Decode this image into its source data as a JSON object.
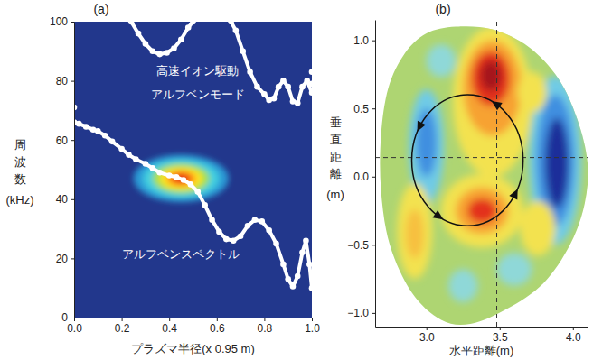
{
  "chart_data": [
    {
      "type": "line",
      "title": "(a)",
      "xlabel": "プラズマ半径(x 0.95 m)",
      "ylabel": [
        "周波数",
        "(kHz)"
      ],
      "color": "#22378c",
      "xlim": [
        0,
        1
      ],
      "xticks": [
        {
          "value": 0,
          "label": "0.0"
        },
        0.2,
        0.4,
        0.6,
        0.8,
        {
          "value": 1,
          "label": "1.0"
        }
      ],
      "ylim": [
        0,
        100
      ],
      "yticks": [
        0,
        20,
        40,
        60,
        80,
        100
      ],
      "series": [
        {
          "color": "#ffffff",
          "marker": "circle",
          "line_style": "solid",
          "x": [
            0.0,
            0.02,
            0.05,
            0.08,
            0.1,
            0.13,
            0.16,
            0.2,
            0.23,
            0.26,
            0.3,
            0.33,
            0.36,
            0.4,
            0.43,
            0.46,
            0.49,
            0.52,
            0.55,
            0.58,
            0.61,
            0.64,
            0.67,
            0.7,
            0.73,
            0.76,
            0.79,
            0.82,
            0.85,
            0.88,
            0.9,
            0.92,
            0.94,
            0.96,
            0.975,
            0.99,
            1.0
          ],
          "values": [
            66,
            65.5,
            64.5,
            63.5,
            63,
            61.5,
            59.5,
            57,
            55,
            53.5,
            52,
            50.5,
            49,
            48,
            47.5,
            46.5,
            45,
            42.5,
            38,
            33,
            29,
            26.5,
            26,
            27.5,
            31,
            33,
            32.5,
            29.5,
            25,
            18,
            13,
            10.5,
            14,
            22,
            26,
            18,
            10
          ]
        },
        {
          "color": "#ffffff",
          "marker": "circle",
          "line_style": "solid",
          "x": [
            0.24,
            0.27,
            0.3,
            0.33,
            0.36,
            0.39,
            0.42,
            0.45,
            0.48,
            0.5,
            0.58,
            0.66,
            0.68,
            0.71,
            0.74,
            0.77,
            0.8,
            0.82,
            0.84,
            0.86,
            0.88,
            0.9,
            0.92,
            0.94,
            0.96,
            0.98,
            1.0
          ],
          "values": [
            100,
            96,
            92.5,
            90,
            89,
            89.5,
            91,
            94,
            98,
            100,
            null,
            100,
            97,
            90,
            83,
            78,
            75.5,
            73.5,
            74,
            78,
            80,
            78,
            73,
            72.5,
            78,
            80,
            76
          ]
        },
        {
          "color": "#ffffff",
          "marker": "circle",
          "line_style": "none",
          "x": [
            0.0,
            1.0,
            1.0
          ],
          "values": [
            71,
            83,
            79
          ]
        }
      ],
      "mode": {
        "x": 0.45,
        "y": 47,
        "x_radius": [
          0.2,
          0.16,
          0.12,
          0.09,
          0.06,
          0.035
        ],
        "y_radius": [
          8,
          6.5,
          5,
          3.8,
          2.6,
          1.5
        ],
        "colors": [
          "#2a9ad6",
          "#43cfe0",
          "#a6e046",
          "#ffe324",
          "#ff8a12",
          "#e62414"
        ]
      },
      "annotations": [
        {
          "text": "高速イオン駆動",
          "x": 0.52,
          "y": 82
        },
        {
          "text": "アルフベンモード",
          "x": 0.52,
          "y": 74
        },
        {
          "text": "アルフベンスペクトル",
          "x": 0.45,
          "y": 20
        }
      ]
    },
    {
      "type": "contour",
      "title": "(b)",
      "xlabel": "水平距離(m)",
      "ylabel": [
        "垂直距離",
        "(m)"
      ],
      "xlim": [
        2.65,
        4.1
      ],
      "xticks": [
        {
          "value": 3,
          "label": "3.0"
        },
        3.5,
        {
          "value": 4,
          "label": "4.0"
        }
      ],
      "ylim": [
        -1.1,
        1.15
      ],
      "yticks": [
        {
          "value": -1,
          "label": "−1.0"
        },
        {
          "value": -0.5,
          "label": "−0.5"
        },
        {
          "value": 0,
          "label": "0.0"
        },
        0.5,
        {
          "value": 1,
          "label": "1.0"
        }
      ],
      "boundary": {
        "color": "#aed572",
        "x": [
          3.2,
          3.45,
          3.7,
          3.9,
          4.03,
          4.1,
          4.08,
          3.98,
          3.8,
          3.55,
          3.3,
          3.1,
          2.9,
          2.75,
          2.69,
          2.69,
          2.74,
          2.85,
          3.0
        ],
        "y": [
          1.1,
          1.08,
          0.95,
          0.72,
          0.42,
          0.1,
          -0.2,
          -0.5,
          -0.78,
          -0.97,
          -1.08,
          -1.05,
          -0.85,
          -0.5,
          -0.1,
          0.3,
          0.65,
          0.9,
          1.05
        ]
      },
      "blobs": [
        {
          "x": 3.45,
          "y": 0.55,
          "x_radius": 0.27,
          "y_radius": 0.55,
          "color": "#f3e24f"
        },
        {
          "x": 3.45,
          "y": 0.65,
          "x_radius": 0.2,
          "y_radius": 0.35,
          "color": "#f7a232"
        },
        {
          "x": 3.44,
          "y": 0.72,
          "x_radius": 0.13,
          "y_radius": 0.2,
          "color": "#e3321e"
        },
        {
          "x": 3.44,
          "y": 0.74,
          "x_radius": 0.07,
          "y_radius": 0.11,
          "color": "#a5141a"
        },
        {
          "x": 3.38,
          "y": -0.25,
          "x_radius": 0.28,
          "y_radius": 0.27,
          "color": "#f3e24f"
        },
        {
          "x": 3.38,
          "y": -0.25,
          "x_radius": 0.18,
          "y_radius": 0.17,
          "color": "#f7a232"
        },
        {
          "x": 3.38,
          "y": -0.25,
          "x_radius": 0.1,
          "y_radius": 0.09,
          "color": "#e3321e"
        },
        {
          "x": 3.88,
          "y": 0.12,
          "x_radius": 0.18,
          "y_radius": 0.62,
          "color": "#6fcbe6"
        },
        {
          "x": 3.88,
          "y": 0.12,
          "x_radius": 0.13,
          "y_radius": 0.48,
          "color": "#3f8fe0"
        },
        {
          "x": 3.89,
          "y": 0.1,
          "x_radius": 0.08,
          "y_radius": 0.33,
          "color": "#1f2f9a"
        },
        {
          "x": 3.0,
          "y": 0.22,
          "x_radius": 0.12,
          "y_radius": 0.42,
          "color": "#6fcbe6"
        },
        {
          "x": 3.0,
          "y": 0.25,
          "x_radius": 0.07,
          "y_radius": 0.25,
          "color": "#3f8fe0"
        },
        {
          "x": 2.92,
          "y": -0.4,
          "x_radius": 0.12,
          "y_radius": 0.35,
          "color": "#f3e24f"
        },
        {
          "x": 2.92,
          "y": -0.42,
          "x_radius": 0.06,
          "y_radius": 0.18,
          "color": "#f7c040"
        },
        {
          "x": 3.72,
          "y": 0.62,
          "x_radius": 0.1,
          "y_radius": 0.15,
          "color": "#f3e24f"
        },
        {
          "x": 3.76,
          "y": -0.38,
          "x_radius": 0.12,
          "y_radius": 0.2,
          "color": "#f3e24f"
        },
        {
          "x": 3.6,
          "y": -0.68,
          "x_radius": 0.12,
          "y_radius": 0.12,
          "color": "#8fd8d8"
        },
        {
          "x": 3.1,
          "y": 0.85,
          "x_radius": 0.1,
          "y_radius": 0.12,
          "color": "#8fd8d8"
        },
        {
          "x": 3.25,
          "y": -0.8,
          "x_radius": 0.1,
          "y_radius": 0.12,
          "color": "#8fd8d8"
        }
      ],
      "reference_lines": {
        "x": 3.48,
        "y": 0.14
      },
      "arrows": {
        "x": 3.28,
        "y": 0.12,
        "x_radius": 0.38,
        "y_radius": 0.48
      }
    }
  ]
}
